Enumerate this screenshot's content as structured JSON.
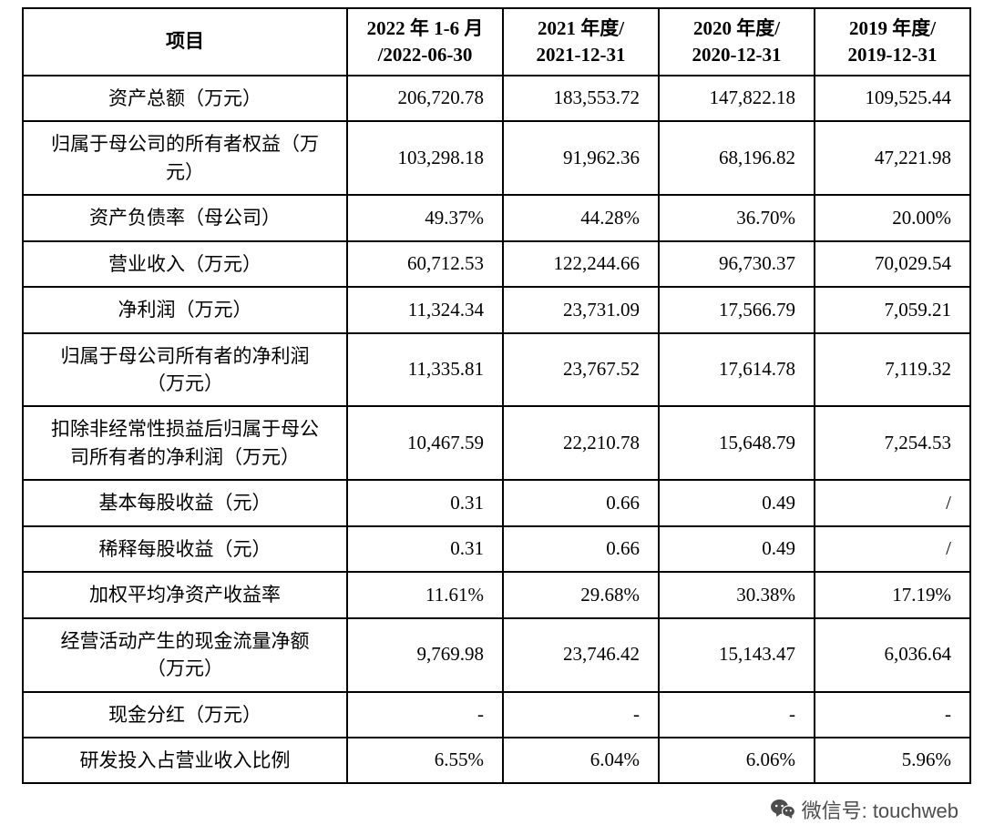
{
  "table": {
    "item_header": "项目",
    "period_headers": [
      {
        "line1": "2022 年 1-6 月",
        "line2": "/2022-06-30"
      },
      {
        "line1": "2021 年度/",
        "line2": "2021-12-31"
      },
      {
        "line1": "2020 年度/",
        "line2": "2020-12-31"
      },
      {
        "line1": "2019 年度/",
        "line2": "2019-12-31"
      }
    ],
    "rows": [
      {
        "label": "资产总额（万元）",
        "values": [
          "206,720.78",
          "183,553.72",
          "147,822.18",
          "109,525.44"
        ]
      },
      {
        "label": "归属于母公司的所有者权益（万元）",
        "values": [
          "103,298.18",
          "91,962.36",
          "68,196.82",
          "47,221.98"
        ]
      },
      {
        "label": "资产负债率（母公司）",
        "values": [
          "49.37%",
          "44.28%",
          "36.70%",
          "20.00%"
        ]
      },
      {
        "label": "营业收入（万元）",
        "values": [
          "60,712.53",
          "122,244.66",
          "96,730.37",
          "70,029.54"
        ]
      },
      {
        "label": "净利润（万元）",
        "values": [
          "11,324.34",
          "23,731.09",
          "17,566.79",
          "7,059.21"
        ]
      },
      {
        "label": "归属于母公司所有者的净利润（万元）",
        "values": [
          "11,335.81",
          "23,767.52",
          "17,614.78",
          "7,119.32"
        ]
      },
      {
        "label": "扣除非经常性损益后归属于母公司所有者的净利润（万元）",
        "values": [
          "10,467.59",
          "22,210.78",
          "15,648.79",
          "7,254.53"
        ]
      },
      {
        "label": "基本每股收益（元）",
        "values": [
          "0.31",
          "0.66",
          "0.49",
          "/"
        ]
      },
      {
        "label": "稀释每股收益（元）",
        "values": [
          "0.31",
          "0.66",
          "0.49",
          "/"
        ]
      },
      {
        "label": "加权平均净资产收益率",
        "values": [
          "11.61%",
          "29.68%",
          "30.38%",
          "17.19%"
        ]
      },
      {
        "label": "经营活动产生的现金流量净额（万元）",
        "values": [
          "9,769.98",
          "23,746.42",
          "15,143.47",
          "6,036.64"
        ]
      },
      {
        "label": "现金分红（万元）",
        "values": [
          "-",
          "-",
          "-",
          "-"
        ]
      },
      {
        "label": "研发投入占营业收入比例",
        "values": [
          "6.55%",
          "6.04%",
          "6.06%",
          "5.96%"
        ]
      }
    ]
  },
  "footer": {
    "wechat_text": "微信号: touchweb"
  }
}
